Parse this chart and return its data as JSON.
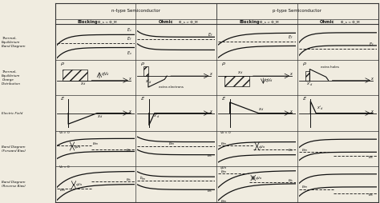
{
  "title_n": "n-type Semiconductor",
  "title_p": "p-type Semiconductor",
  "col_headers": [
    "Blocking",
    "Ohmic",
    "Blocking",
    "Ohmic"
  ],
  "col_subheaders": [
    "Φ_s < Φ_M",
    "Φ_s > Φ_M",
    "Φ_s > Φ_M",
    "Φ_s < Φ_M"
  ],
  "row_labels": [
    "Thermal-\nEquilibrium\nBand Diagram",
    "Thermal-\nEquilibrium\nCharge\nDistribution",
    "Electric Field",
    "Band Diagram\n(Forward Bias)",
    "Band Diagram\n(Reverse Bias)"
  ],
  "bg_color": "#f0ece0",
  "cell_bg": "#f5f2e8",
  "line_color": "#111111",
  "grid_color": "#333333",
  "hatch_color": "#333333"
}
